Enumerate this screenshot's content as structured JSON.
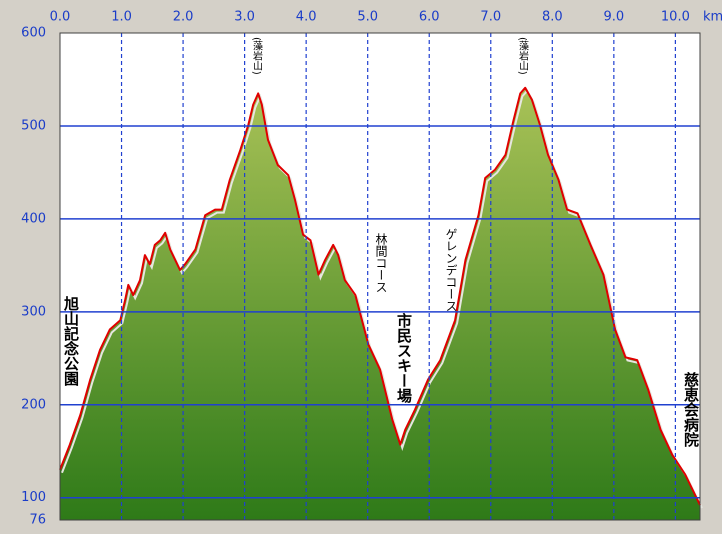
{
  "chart_data": {
    "type": "area",
    "x_label": "km",
    "xlim": [
      0,
      10.4
    ],
    "ylim": [
      76,
      600
    ],
    "xticks": [
      {
        "value": 0,
        "label": "0.0"
      },
      {
        "value": 1,
        "label": "1.0"
      },
      {
        "value": 2,
        "label": "2.0"
      },
      {
        "value": 3,
        "label": "3.0"
      },
      {
        "value": 4,
        "label": "4.0"
      },
      {
        "value": 5,
        "label": "5.0"
      },
      {
        "value": 6,
        "label": "6.0"
      },
      {
        "value": 7,
        "label": "7.0"
      },
      {
        "value": 8,
        "label": "8.0"
      },
      {
        "value": 9,
        "label": "9.0"
      },
      {
        "value": 10,
        "label": "10.0"
      }
    ],
    "yticks": [
      600,
      500,
      400,
      300,
      200,
      100,
      76
    ],
    "grid": true,
    "annotations": [
      "(藻岩山)",
      "(藻岩山)",
      "旭山記念公園",
      "林間コース",
      "市民スキー場",
      "ゲレンデコース",
      "慈恵会病院"
    ],
    "series": [
      {
        "color": "#e00000",
        "fill": [
          "#a9c257",
          "#2e7a18"
        ],
        "x": [
          0,
          0.16,
          0.33,
          0.49,
          0.65,
          0.81,
          0.98,
          1.06,
          1.11,
          1.19,
          1.3,
          1.38,
          1.46,
          1.54,
          1.63,
          1.71,
          1.79,
          1.95,
          2.03,
          2.2,
          2.36,
          2.52,
          2.63,
          2.76,
          2.93,
          3.06,
          3.14,
          3.22,
          3.28,
          3.38,
          3.54,
          3.71,
          3.82,
          3.95,
          4.07,
          4.2,
          4.31,
          4.44,
          4.52,
          4.63,
          4.8,
          5.01,
          5.2,
          5.4,
          5.53,
          5.61,
          5.77,
          5.98,
          6.18,
          6.42,
          6.59,
          6.8,
          6.91,
          7.07,
          7.24,
          7.37,
          7.48,
          7.56,
          7.67,
          7.8,
          7.93,
          8.1,
          8.24,
          8.41,
          8.62,
          8.83,
          9.02,
          9.19,
          9.38,
          9.56,
          9.76,
          9.95,
          10.16,
          10.4
        ],
        "values": [
          130,
          157,
          189,
          227,
          259,
          281,
          291,
          313,
          329,
          318,
          334,
          361,
          351,
          372,
          377,
          385,
          367,
          345,
          351,
          367,
          404,
          410,
          410,
          442,
          474,
          501,
          523,
          535,
          523,
          485,
          458,
          447,
          420,
          383,
          377,
          340,
          356,
          372,
          361,
          334,
          318,
          265,
          238,
          184,
          157,
          173,
          195,
          227,
          248,
          291,
          356,
          404,
          444,
          453,
          469,
          506,
          535,
          541,
          528,
          501,
          469,
          442,
          410,
          406,
          372,
          340,
          281,
          251,
          248,
          216,
          173,
          146,
          125,
          92
        ]
      }
    ]
  }
}
